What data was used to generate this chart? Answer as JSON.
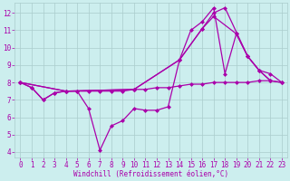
{
  "xlabel": "Windchill (Refroidissement éolien,°C)",
  "bg_color": "#cceeee",
  "grid_color": "#aacccc",
  "line_color": "#aa00aa",
  "xlim_min": -0.5,
  "xlim_max": 23.5,
  "ylim_min": 3.7,
  "ylim_max": 12.6,
  "yticks": [
    4,
    5,
    6,
    7,
    8,
    9,
    10,
    11,
    12
  ],
  "xticks": [
    0,
    1,
    2,
    3,
    4,
    5,
    6,
    7,
    8,
    9,
    10,
    11,
    12,
    13,
    14,
    15,
    16,
    17,
    18,
    19,
    20,
    21,
    22,
    23
  ],
  "line1_x": [
    0,
    1,
    2,
    3,
    4,
    5,
    6,
    7,
    8,
    9,
    10,
    11,
    12,
    13,
    14,
    15,
    16,
    17,
    18,
    19,
    20,
    21,
    22
  ],
  "line1_y": [
    8.0,
    7.7,
    7.0,
    7.4,
    7.5,
    7.5,
    6.5,
    4.1,
    5.5,
    5.8,
    6.5,
    6.4,
    6.4,
    6.6,
    9.3,
    11.0,
    11.5,
    12.3,
    8.5,
    10.8,
    9.5,
    8.7,
    8.1
  ],
  "line2_x": [
    0,
    1,
    2,
    3,
    4,
    5,
    6,
    7,
    8,
    9,
    10,
    11,
    12,
    13,
    14,
    15,
    16,
    17,
    18,
    19,
    20,
    21,
    22,
    23
  ],
  "line2_y": [
    8.0,
    7.7,
    7.0,
    7.4,
    7.5,
    7.5,
    7.5,
    7.5,
    7.5,
    7.5,
    7.6,
    7.6,
    7.7,
    7.7,
    7.8,
    7.9,
    7.9,
    8.0,
    8.0,
    8.0,
    8.0,
    8.1,
    8.1,
    8.0
  ],
  "line3_x": [
    0,
    4,
    10,
    14,
    16,
    17,
    18,
    20,
    21,
    22,
    23
  ],
  "line3_y": [
    8.0,
    7.5,
    7.6,
    9.3,
    11.1,
    12.0,
    12.3,
    9.5,
    8.7,
    8.1,
    8.0
  ],
  "line4_x": [
    0,
    4,
    10,
    14,
    16,
    17,
    19,
    20,
    21,
    22,
    23
  ],
  "line4_y": [
    8.0,
    7.5,
    7.6,
    9.3,
    11.1,
    11.8,
    10.8,
    9.5,
    8.7,
    8.5,
    8.0
  ],
  "marker_size": 2.5,
  "line_width": 0.9,
  "tick_fontsize": 5.5,
  "xlabel_fontsize": 5.5
}
